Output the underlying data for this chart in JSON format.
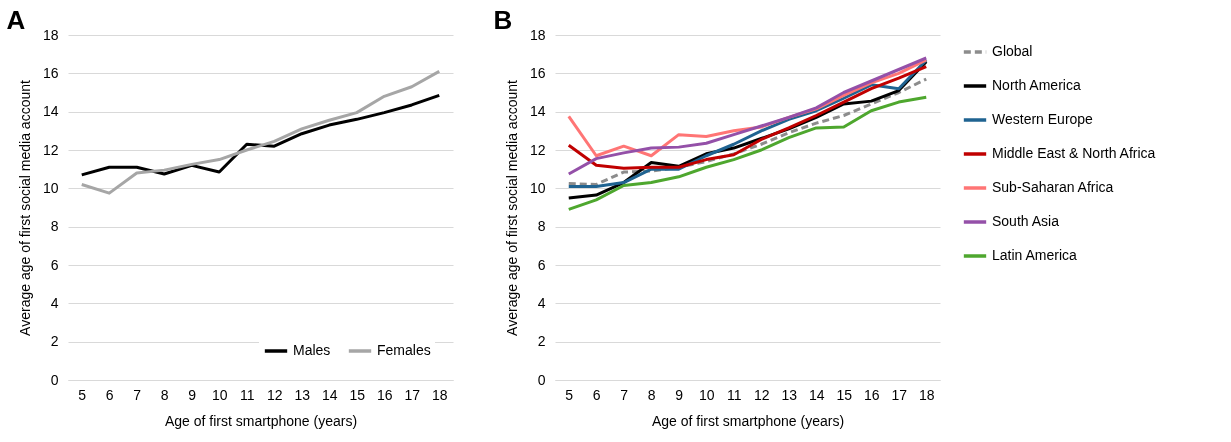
{
  "chart_data": [
    {
      "type": "line",
      "title": "A",
      "xlabel": "Age of first smartphone (years)",
      "ylabel": "Average age of first social media account",
      "categories": [
        "5",
        "6",
        "7",
        "8",
        "9",
        "10",
        "11",
        "12",
        "13",
        "14",
        "15",
        "16",
        "17",
        "18"
      ],
      "ylim": [
        0,
        18
      ],
      "yticks": [
        0,
        2,
        4,
        6,
        8,
        10,
        12,
        14,
        16,
        18
      ],
      "grid": "y",
      "legend": "bottom right",
      "series": [
        {
          "name": "Males",
          "color": "#000000",
          "values": [
            10.7,
            11.1,
            11.1,
            10.75,
            11.2,
            10.85,
            12.3,
            12.2,
            12.85,
            13.3,
            13.6,
            13.95,
            14.35,
            14.85
          ]
        },
        {
          "name": "Females",
          "color": "#a6a6a6",
          "values": [
            10.2,
            9.75,
            10.8,
            10.95,
            11.25,
            11.5,
            12.0,
            12.45,
            13.1,
            13.55,
            13.95,
            14.8,
            15.3,
            16.1
          ]
        }
      ]
    },
    {
      "type": "line",
      "title": "B",
      "xlabel": "Age of first smartphone (years)",
      "ylabel": "Average age of first social media account",
      "categories": [
        "5",
        "6",
        "7",
        "8",
        "9",
        "10",
        "11",
        "12",
        "13",
        "14",
        "15",
        "16",
        "17",
        "18"
      ],
      "ylim": [
        0,
        18
      ],
      "yticks": [
        0,
        2,
        4,
        6,
        8,
        10,
        12,
        14,
        16,
        18
      ],
      "grid": "y",
      "legend": "right",
      "series": [
        {
          "name": "Global",
          "color": "#8c8c8c",
          "line_style": "dashed",
          "values": [
            10.25,
            10.2,
            10.85,
            10.9,
            11.1,
            11.4,
            11.8,
            12.3,
            12.9,
            13.4,
            13.8,
            14.4,
            15.0,
            15.7
          ]
        },
        {
          "name": "North America",
          "color": "#000000",
          "values": [
            9.5,
            9.65,
            10.3,
            11.35,
            11.15,
            11.8,
            12.1,
            12.6,
            13.1,
            13.7,
            14.4,
            14.55,
            15.1,
            16.6
          ]
        },
        {
          "name": "Western Europe",
          "color": "#1f6391",
          "values": [
            10.1,
            10.1,
            10.3,
            11.0,
            11.0,
            11.7,
            12.3,
            13.0,
            13.6,
            14.05,
            14.7,
            15.4,
            15.2,
            16.7
          ]
        },
        {
          "name": "Middle East & North Africa",
          "color": "#c00000",
          "values": [
            12.25,
            11.2,
            11.05,
            11.1,
            11.1,
            11.5,
            11.75,
            12.55,
            13.15,
            13.8,
            14.5,
            15.2,
            15.75,
            16.35
          ]
        },
        {
          "name": "Sub-Saharan Africa",
          "color": "#ff7575",
          "values": [
            13.75,
            11.7,
            12.2,
            11.7,
            12.8,
            12.7,
            13.0,
            13.2,
            13.7,
            14.15,
            14.85,
            15.5,
            16.0,
            16.7
          ]
        },
        {
          "name": "South Asia",
          "color": "#9450a8",
          "values": [
            10.75,
            11.55,
            11.85,
            12.1,
            12.15,
            12.35,
            12.8,
            13.25,
            13.7,
            14.2,
            15.0,
            15.6,
            16.2,
            16.8
          ]
        },
        {
          "name": "Latin America",
          "color": "#4ea72e",
          "values": [
            8.9,
            9.4,
            10.15,
            10.3,
            10.6,
            11.1,
            11.5,
            12.0,
            12.65,
            13.15,
            13.2,
            14.05,
            14.5,
            14.75
          ]
        }
      ]
    }
  ]
}
